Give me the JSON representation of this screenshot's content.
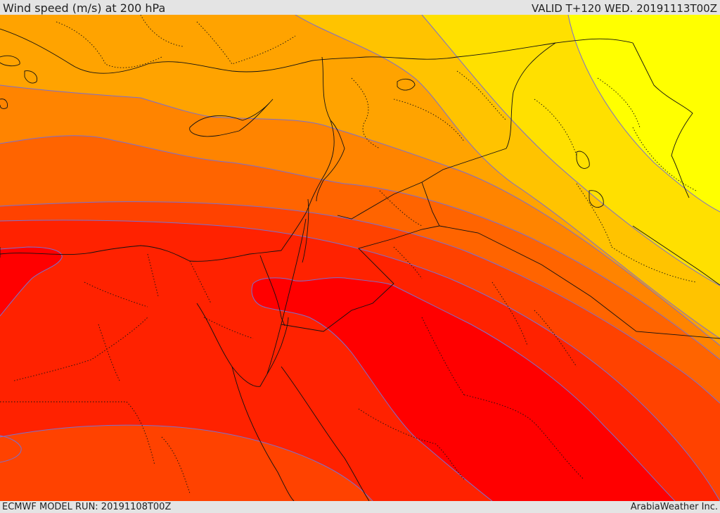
{
  "header": {
    "title": "Wind speed (m/s) at 200 hPa",
    "valid_time": "VALID T+120 WED. 20191113T00Z"
  },
  "map": {
    "field": "wind speed",
    "level": "200 hPa",
    "units": "m/s",
    "palette_low_to_high": [
      "#ffff00",
      "#ffe000",
      "#ffc300",
      "#ffa300",
      "#ff8400",
      "#ff6400",
      "#ff4200",
      "#ff2200",
      "#ff0000"
    ],
    "contour_line_color": "#7a6fd0",
    "border_color": "#111111"
  },
  "footer": {
    "model_run": "ECMWF MODEL RUN: 20191108T00Z",
    "credit": "ArabiaWeather Inc."
  }
}
